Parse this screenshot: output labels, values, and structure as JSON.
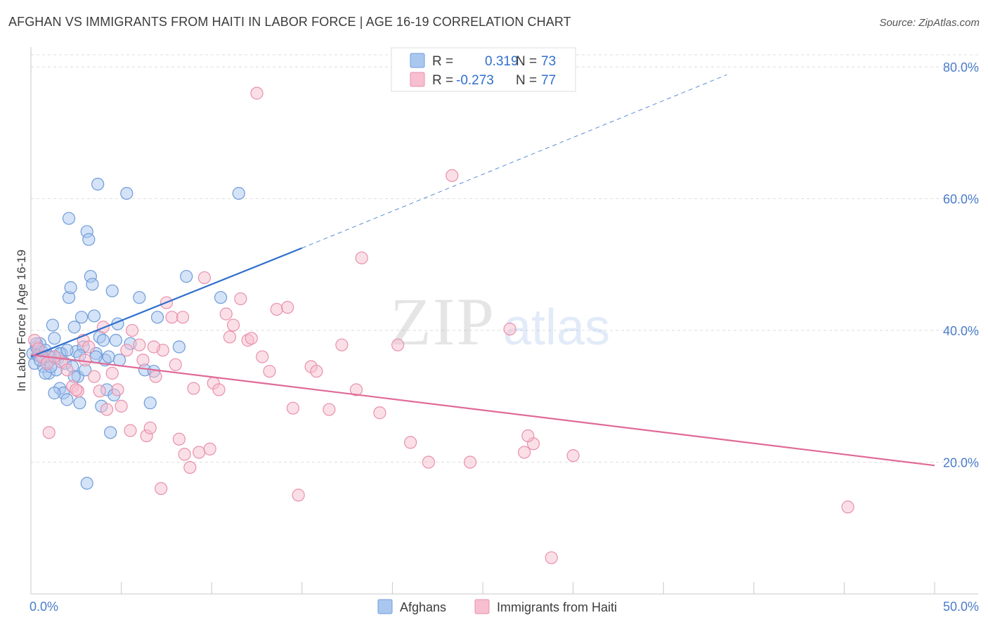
{
  "title": "AFGHAN VS IMMIGRANTS FROM HAITI IN LABOR FORCE | AGE 16-19 CORRELATION CHART",
  "source": "Source: ZipAtlas.com",
  "watermark": {
    "zip": "ZIP",
    "atlas": "atlas"
  },
  "legend": {
    "r_label": "R =",
    "n_label": "N =",
    "afghans": {
      "r": "0.319",
      "n": "73"
    },
    "haiti": {
      "r": "-0.273",
      "n": "77"
    }
  },
  "colors": {
    "afghans_fill": "#aac8ef",
    "afghans_stroke": "#6f9bd8",
    "afghans_line": "#2f6fcc",
    "haiti_fill": "#f7bfd0",
    "haiti_stroke": "#e890ad",
    "haiti_line": "#e06a97",
    "tick": "#4a7cc9"
  },
  "chart_data": {
    "type": "scatter",
    "title": "AFGHAN VS IMMIGRANTS FROM HAITI IN LABOR FORCE | AGE 16-19 CORRELATION CHART",
    "xlabel": "",
    "ylabel": "In Labor Force | Age 16-19",
    "xlim": [
      0,
      50
    ],
    "ylim": [
      0,
      83
    ],
    "x_tick_labels": [
      "0.0%",
      "50.0%"
    ],
    "y_ticks": [
      20,
      40,
      60,
      80
    ],
    "y_tick_labels": [
      "20.0%",
      "40.0%",
      "60.0%",
      "80.0%"
    ],
    "grid": true,
    "legend_position": "bottom-center",
    "series": [
      {
        "name": "Afghans",
        "r": 0.319,
        "n": 73,
        "trend": {
          "x0": 0,
          "y0": 36.0,
          "x1": 15.0,
          "y1": 52.5,
          "dashed_to_x": 38.5,
          "dashed_to_y": 78.8
        },
        "points": [
          [
            0.1,
            36.5
          ],
          [
            0.2,
            35.0
          ],
          [
            0.3,
            37.5
          ],
          [
            0.4,
            36.2
          ],
          [
            0.5,
            38.0
          ],
          [
            0.6,
            36.8
          ],
          [
            0.7,
            34.5
          ],
          [
            0.8,
            37.0
          ],
          [
            0.9,
            35.5
          ],
          [
            1.0,
            33.5
          ],
          [
            1.1,
            36.0
          ],
          [
            1.2,
            40.8
          ],
          [
            1.3,
            38.8
          ],
          [
            1.4,
            34.0
          ],
          [
            1.5,
            35.8
          ],
          [
            1.6,
            31.2
          ],
          [
            1.7,
            36.5
          ],
          [
            1.8,
            30.5
          ],
          [
            1.9,
            35.0
          ],
          [
            2.0,
            29.5
          ],
          [
            2.1,
            45.0
          ],
          [
            2.2,
            46.5
          ],
          [
            2.3,
            34.5
          ],
          [
            2.4,
            40.5
          ],
          [
            2.5,
            36.8
          ],
          [
            2.6,
            33.0
          ],
          [
            2.7,
            29.0
          ],
          [
            2.8,
            42.0
          ],
          [
            2.9,
            37.5
          ],
          [
            3.0,
            34.0
          ],
          [
            3.1,
            55.0
          ],
          [
            3.2,
            53.8
          ],
          [
            3.3,
            48.2
          ],
          [
            3.4,
            47.0
          ],
          [
            3.5,
            42.2
          ],
          [
            3.6,
            36.5
          ],
          [
            3.7,
            62.2
          ],
          [
            3.8,
            39.0
          ],
          [
            3.9,
            28.5
          ],
          [
            4.0,
            38.5
          ],
          [
            4.1,
            35.5
          ],
          [
            4.2,
            31.0
          ],
          [
            4.3,
            36.0
          ],
          [
            4.5,
            46.0
          ],
          [
            4.6,
            30.2
          ],
          [
            4.7,
            38.5
          ],
          [
            4.8,
            41.0
          ],
          [
            4.9,
            35.5
          ],
          [
            5.3,
            60.8
          ],
          [
            5.5,
            38.0
          ],
          [
            4.4,
            24.5
          ],
          [
            3.1,
            16.8
          ],
          [
            6.0,
            45.0
          ],
          [
            6.3,
            34.0
          ],
          [
            6.6,
            29.0
          ],
          [
            6.8,
            33.8
          ],
          [
            7.0,
            42.0
          ],
          [
            8.2,
            37.5
          ],
          [
            8.6,
            48.2
          ],
          [
            10.5,
            45.0
          ],
          [
            11.5,
            60.8
          ],
          [
            2.1,
            57.0
          ],
          [
            1.0,
            36.0
          ],
          [
            0.5,
            35.5
          ],
          [
            1.6,
            36.5
          ],
          [
            2.0,
            37.0
          ],
          [
            0.3,
            38.0
          ],
          [
            1.3,
            30.5
          ],
          [
            2.4,
            33.0
          ],
          [
            0.8,
            33.5
          ],
          [
            1.1,
            34.5
          ],
          [
            3.6,
            36.0
          ],
          [
            2.7,
            36.2
          ]
        ]
      },
      {
        "name": "Immigrants from Haiti",
        "r": -0.273,
        "n": 77,
        "trend": {
          "x0": 0,
          "y0": 36.3,
          "x1": 50.0,
          "y1": 19.5
        },
        "points": [
          [
            0.2,
            38.5
          ],
          [
            0.4,
            37.2
          ],
          [
            0.6,
            36.0
          ],
          [
            0.9,
            35.0
          ],
          [
            1.0,
            24.5
          ],
          [
            1.7,
            35.2
          ],
          [
            2.0,
            34.0
          ],
          [
            2.3,
            31.5
          ],
          [
            2.6,
            30.8
          ],
          [
            2.9,
            38.5
          ],
          [
            3.2,
            37.5
          ],
          [
            3.5,
            33.0
          ],
          [
            3.8,
            30.8
          ],
          [
            4.0,
            40.5
          ],
          [
            4.2,
            28.0
          ],
          [
            4.5,
            33.5
          ],
          [
            4.8,
            31.0
          ],
          [
            5.0,
            28.5
          ],
          [
            5.3,
            37.0
          ],
          [
            5.6,
            40.0
          ],
          [
            6.0,
            37.8
          ],
          [
            6.2,
            35.5
          ],
          [
            6.4,
            24.0
          ],
          [
            6.6,
            25.2
          ],
          [
            6.9,
            33.0
          ],
          [
            7.2,
            16.0
          ],
          [
            7.5,
            44.2
          ],
          [
            7.8,
            42.0
          ],
          [
            8.0,
            34.8
          ],
          [
            8.2,
            23.5
          ],
          [
            8.5,
            21.2
          ],
          [
            8.8,
            19.2
          ],
          [
            9.0,
            31.2
          ],
          [
            9.3,
            21.5
          ],
          [
            9.6,
            48.0
          ],
          [
            9.9,
            22.0
          ],
          [
            10.1,
            32.0
          ],
          [
            10.4,
            31.0
          ],
          [
            10.8,
            42.5
          ],
          [
            11.2,
            40.8
          ],
          [
            11.6,
            44.8
          ],
          [
            12.0,
            38.5
          ],
          [
            12.2,
            38.8
          ],
          [
            12.5,
            76.0
          ],
          [
            12.8,
            36.0
          ],
          [
            13.2,
            33.8
          ],
          [
            13.6,
            43.2
          ],
          [
            14.2,
            43.5
          ],
          [
            14.5,
            28.2
          ],
          [
            14.8,
            15.0
          ],
          [
            15.5,
            34.5
          ],
          [
            15.8,
            33.8
          ],
          [
            16.5,
            28.0
          ],
          [
            17.2,
            37.8
          ],
          [
            18.0,
            31.0
          ],
          [
            18.3,
            51.0
          ],
          [
            19.3,
            27.5
          ],
          [
            20.3,
            37.8
          ],
          [
            21.0,
            23.0
          ],
          [
            22.0,
            20.0
          ],
          [
            23.3,
            63.5
          ],
          [
            24.3,
            20.0
          ],
          [
            26.5,
            40.2
          ],
          [
            27.3,
            21.5
          ],
          [
            27.8,
            22.8
          ],
          [
            28.8,
            5.5
          ],
          [
            30.0,
            21.0
          ],
          [
            45.2,
            13.2
          ],
          [
            27.5,
            24.0
          ],
          [
            5.5,
            24.8
          ],
          [
            7.3,
            37.0
          ],
          [
            8.4,
            42.0
          ],
          [
            2.5,
            31.0
          ],
          [
            6.8,
            37.5
          ],
          [
            1.3,
            36.0
          ],
          [
            3.0,
            35.5
          ],
          [
            11.0,
            39.0
          ]
        ]
      }
    ]
  }
}
